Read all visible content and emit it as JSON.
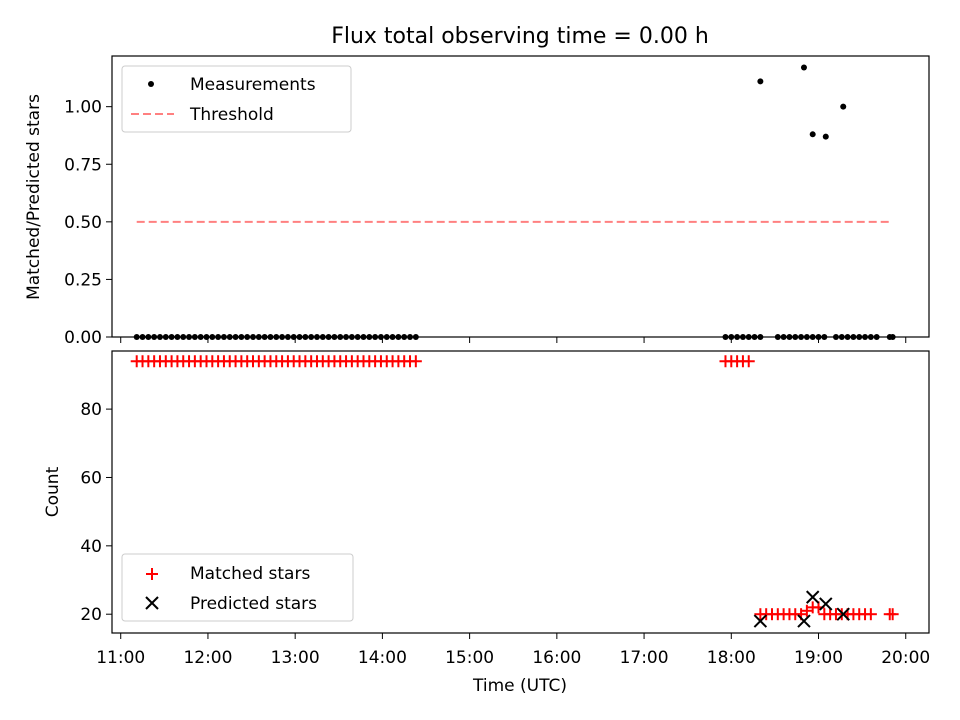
{
  "title": "Flux total observing time = 0.00 h",
  "colors": {
    "measurement": "#000000",
    "threshold": "#ff8080",
    "matched": "#ff0000",
    "predicted": "#000000"
  },
  "chart_data": [
    {
      "type": "scatter",
      "ylabel": "Matched/Predicted stars",
      "ylim": [
        0,
        1.22
      ],
      "xlim": [
        "10:54",
        "20:16"
      ],
      "yticks": [
        "0.00",
        "0.25",
        "0.50",
        "0.75",
        "1.00"
      ],
      "legend": {
        "placement": "top-left",
        "entries": [
          "Measurements",
          "Threshold"
        ]
      },
      "threshold": {
        "name": "Threshold",
        "y": 0.5,
        "x_range": [
          "11:11",
          "19:51"
        ]
      },
      "measurements": {
        "name": "Measurements",
        "times": [
          "11:11",
          "11:15",
          "11:19",
          "11:23",
          "11:27",
          "11:31",
          "11:35",
          "11:39",
          "11:43",
          "11:47",
          "11:51",
          "11:55",
          "11:59",
          "12:03",
          "12:07",
          "12:11",
          "12:15",
          "12:19",
          "12:23",
          "12:27",
          "12:31",
          "12:35",
          "12:39",
          "12:43",
          "12:47",
          "12:51",
          "12:55",
          "12:59",
          "13:03",
          "13:07",
          "13:11",
          "13:15",
          "13:19",
          "13:23",
          "13:27",
          "13:31",
          "13:35",
          "13:39",
          "13:43",
          "13:47",
          "13:51",
          "13:55",
          "13:59",
          "14:03",
          "14:07",
          "14:11",
          "14:15",
          "14:19",
          "14:23",
          "17:56",
          "18:00",
          "18:04",
          "18:08",
          "18:12",
          "18:16",
          "18:20",
          "18:32",
          "18:36",
          "18:40",
          "18:44",
          "18:48",
          "18:52",
          "18:56",
          "19:00",
          "19:04",
          "19:12",
          "19:16",
          "19:20",
          "19:24",
          "19:28",
          "19:32",
          "19:36",
          "19:40",
          "19:49",
          "19:51",
          "18:20",
          "18:50",
          "18:56",
          "19:05",
          "19:17"
        ],
        "values": [
          0,
          0,
          0,
          0,
          0,
          0,
          0,
          0,
          0,
          0,
          0,
          0,
          0,
          0,
          0,
          0,
          0,
          0,
          0,
          0,
          0,
          0,
          0,
          0,
          0,
          0,
          0,
          0,
          0,
          0,
          0,
          0,
          0,
          0,
          0,
          0,
          0,
          0,
          0,
          0,
          0,
          0,
          0,
          0,
          0,
          0,
          0,
          0,
          0,
          0,
          0,
          0,
          0,
          0,
          0,
          0,
          0,
          0,
          0,
          0,
          0,
          0,
          0,
          0,
          0,
          0,
          0,
          0,
          0,
          0,
          0,
          0,
          0,
          0,
          0,
          1.11,
          1.17,
          0.88,
          0.87,
          1.0
        ]
      }
    },
    {
      "type": "scatter",
      "xlabel": "Time (UTC)",
      "ylabel": "Count",
      "ylim": [
        14.5,
        97
      ],
      "xlim": [
        "10:54",
        "20:16"
      ],
      "xticks": [
        "11:00",
        "12:00",
        "13:00",
        "14:00",
        "15:00",
        "16:00",
        "17:00",
        "18:00",
        "19:00",
        "20:00"
      ],
      "yticks": [
        "20",
        "40",
        "60",
        "80"
      ],
      "legend": {
        "placement": "bottom-left",
        "entries": [
          "Matched stars",
          "Predicted stars"
        ]
      },
      "series": [
        {
          "name": "Matched stars",
          "marker": "+",
          "times": [
            "11:11",
            "11:15",
            "11:19",
            "11:23",
            "11:27",
            "11:31",
            "11:35",
            "11:39",
            "11:43",
            "11:47",
            "11:51",
            "11:55",
            "11:59",
            "12:03",
            "12:07",
            "12:11",
            "12:15",
            "12:19",
            "12:23",
            "12:27",
            "12:31",
            "12:35",
            "12:39",
            "12:43",
            "12:47",
            "12:51",
            "12:55",
            "12:59",
            "13:03",
            "13:07",
            "13:11",
            "13:15",
            "13:19",
            "13:23",
            "13:27",
            "13:31",
            "13:35",
            "13:39",
            "13:43",
            "13:47",
            "13:51",
            "13:55",
            "13:59",
            "14:03",
            "14:07",
            "14:11",
            "14:15",
            "14:19",
            "14:23",
            "17:56",
            "18:00",
            "18:04",
            "18:08",
            "18:12",
            "18:20",
            "18:24",
            "18:28",
            "18:32",
            "18:36",
            "18:40",
            "18:44",
            "18:48",
            "18:52",
            "18:56",
            "19:00",
            "19:04",
            "19:08",
            "19:12",
            "19:16",
            "19:20",
            "19:24",
            "19:28",
            "19:32",
            "19:36",
            "19:49",
            "19:51"
          ],
          "values": [
            94,
            94,
            94,
            94,
            94,
            94,
            94,
            94,
            94,
            94,
            94,
            94,
            94,
            94,
            94,
            94,
            94,
            94,
            94,
            94,
            94,
            94,
            94,
            94,
            94,
            94,
            94,
            94,
            94,
            94,
            94,
            94,
            94,
            94,
            94,
            94,
            94,
            94,
            94,
            94,
            94,
            94,
            94,
            94,
            94,
            94,
            94,
            94,
            94,
            94,
            94,
            94,
            94,
            94,
            20,
            20,
            20,
            20,
            20,
            20,
            20,
            20,
            21,
            22,
            22,
            20,
            20,
            20,
            20,
            20,
            20,
            20,
            20,
            20,
            20,
            20
          ]
        },
        {
          "name": "Predicted stars",
          "marker": "x",
          "times": [
            "18:20",
            "18:50",
            "18:56",
            "19:05",
            "19:17"
          ],
          "values": [
            18,
            18,
            25,
            23,
            20
          ]
        }
      ]
    }
  ]
}
